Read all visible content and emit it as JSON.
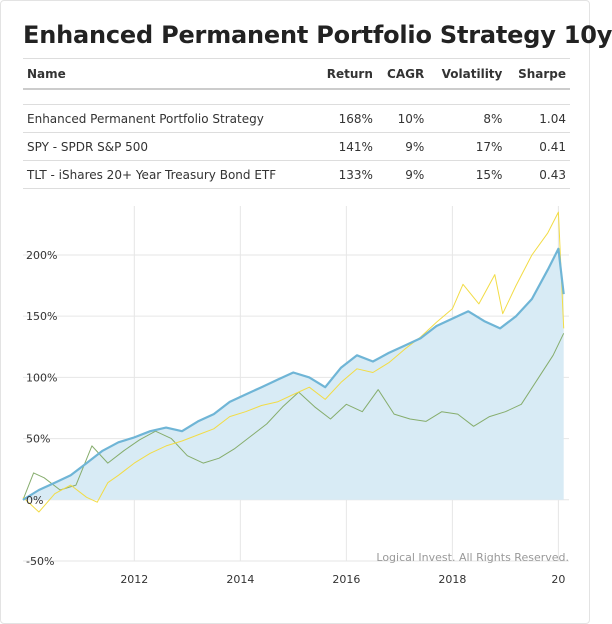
{
  "title": "Enhanced Permanent Portfolio Strategy 10y",
  "table": {
    "headers": [
      "Name",
      "Return",
      "CAGR",
      "Volatility",
      "Sharpe"
    ],
    "rows": [
      [
        "Enhanced Permanent Portfolio Strategy",
        "168%",
        "10%",
        "8%",
        "1.04"
      ],
      [
        "SPY - SPDR S&P 500",
        "141%",
        "9%",
        "17%",
        "0.41"
      ],
      [
        "TLT - iShares 20+ Year Treasury Bond ETF",
        "133%",
        "9%",
        "15%",
        "0.43"
      ]
    ]
  },
  "credit": "Logical Invest. All Rights Reserved.",
  "colors": {
    "strategy_line": "#6fb5d6",
    "strategy_fill": "#d8ebf5",
    "spy": "#f2dc46",
    "tlt": "#86ad6d",
    "grid": "#e6e6e6"
  },
  "chart_data": {
    "type": "line",
    "x_ticks": [
      "2012",
      "2014",
      "2016",
      "2018",
      "20"
    ],
    "y_ticks": [
      "200%",
      "150%",
      "100%",
      "50%",
      "0%",
      "-50%"
    ],
    "ylim": [
      -50,
      240
    ],
    "xlim": [
      2009.9,
      2020.2
    ],
    "series": [
      {
        "key": "strategy",
        "area": true,
        "x": [
          2009.9,
          2010.2,
          2010.5,
          2010.8,
          2011.1,
          2011.4,
          2011.7,
          2012.0,
          2012.3,
          2012.6,
          2012.9,
          2013.2,
          2013.5,
          2013.8,
          2014.1,
          2014.4,
          2014.7,
          2015.0,
          2015.3,
          2015.6,
          2015.9,
          2016.2,
          2016.5,
          2016.8,
          2017.1,
          2017.4,
          2017.7,
          2018.0,
          2018.3,
          2018.6,
          2018.9,
          2019.2,
          2019.5,
          2019.8,
          2020.0,
          2020.1
        ],
        "y": [
          0,
          8,
          14,
          20,
          30,
          40,
          47,
          51,
          56,
          59,
          56,
          64,
          70,
          80,
          86,
          92,
          98,
          104,
          100,
          92,
          108,
          118,
          113,
          120,
          126,
          132,
          142,
          148,
          154,
          146,
          140,
          150,
          164,
          188,
          205,
          168
        ]
      },
      {
        "key": "spy",
        "area": false,
        "x": [
          2009.9,
          2010.2,
          2010.5,
          2010.8,
          2011.1,
          2011.3,
          2011.5,
          2011.7,
          2012.0,
          2012.3,
          2012.6,
          2012.9,
          2013.2,
          2013.5,
          2013.8,
          2014.1,
          2014.4,
          2014.7,
          2015.0,
          2015.3,
          2015.6,
          2015.9,
          2016.2,
          2016.5,
          2016.8,
          2017.1,
          2017.4,
          2017.7,
          2018.0,
          2018.2,
          2018.5,
          2018.8,
          2018.95,
          2019.2,
          2019.5,
          2019.8,
          2020.0,
          2020.1
        ],
        "y": [
          2,
          -10,
          5,
          12,
          2,
          -2,
          14,
          20,
          30,
          38,
          44,
          48,
          53,
          58,
          68,
          72,
          77,
          80,
          86,
          92,
          82,
          96,
          107,
          104,
          112,
          123,
          133,
          145,
          156,
          176,
          160,
          184,
          152,
          175,
          200,
          218,
          235,
          140
        ]
      },
      {
        "key": "tlt",
        "area": false,
        "x": [
          2009.9,
          2010.1,
          2010.3,
          2010.6,
          2010.9,
          2011.2,
          2011.5,
          2011.8,
          2012.1,
          2012.4,
          2012.7,
          2013.0,
          2013.3,
          2013.6,
          2013.9,
          2014.2,
          2014.5,
          2014.8,
          2015.1,
          2015.4,
          2015.7,
          2016.0,
          2016.3,
          2016.6,
          2016.9,
          2017.2,
          2017.5,
          2017.8,
          2018.1,
          2018.4,
          2018.7,
          2019.0,
          2019.3,
          2019.6,
          2019.9,
          2020.1
        ],
        "y": [
          0,
          22,
          18,
          8,
          12,
          44,
          30,
          40,
          49,
          56,
          50,
          36,
          30,
          34,
          42,
          52,
          62,
          76,
          88,
          76,
          66,
          78,
          72,
          90,
          70,
          66,
          64,
          72,
          70,
          60,
          68,
          72,
          78,
          98,
          118,
          136
        ]
      }
    ]
  }
}
